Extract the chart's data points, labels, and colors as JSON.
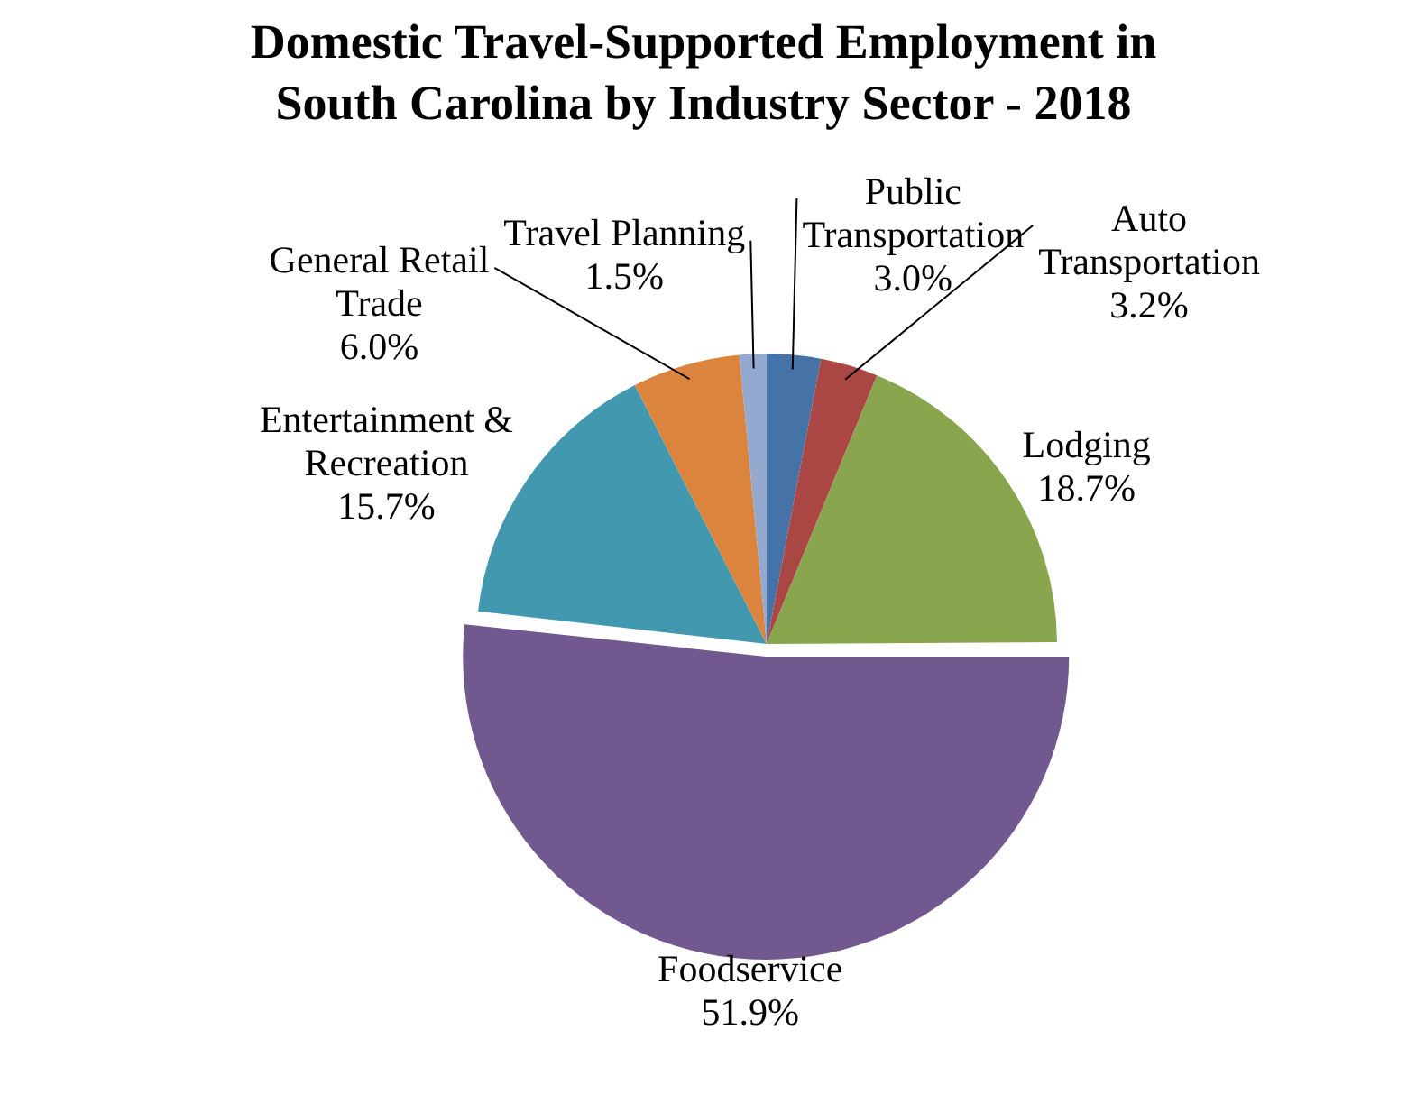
{
  "chart_data": {
    "type": "pie",
    "title": "Domestic Travel-Supported Employment in South Carolina by Industry Sector - 2018",
    "categories": [
      "Public Transportation",
      "Auto Transportation",
      "Lodging",
      "Foodservice",
      "Entertainment & Recreation",
      "General Retail Trade",
      "Travel Planning"
    ],
    "values": [
      3.0,
      3.2,
      18.7,
      51.9,
      15.7,
      6.0,
      1.5
    ],
    "value_labels": [
      "3.0%",
      "3.2%",
      "18.7%",
      "51.9%",
      "15.7%",
      "6.0%",
      "1.5%"
    ],
    "colors": [
      "#4572a7",
      "#aa4643",
      "#89a54e",
      "#71588f",
      "#4198af",
      "#db843d",
      "#93a9cf"
    ],
    "legend": false
  }
}
